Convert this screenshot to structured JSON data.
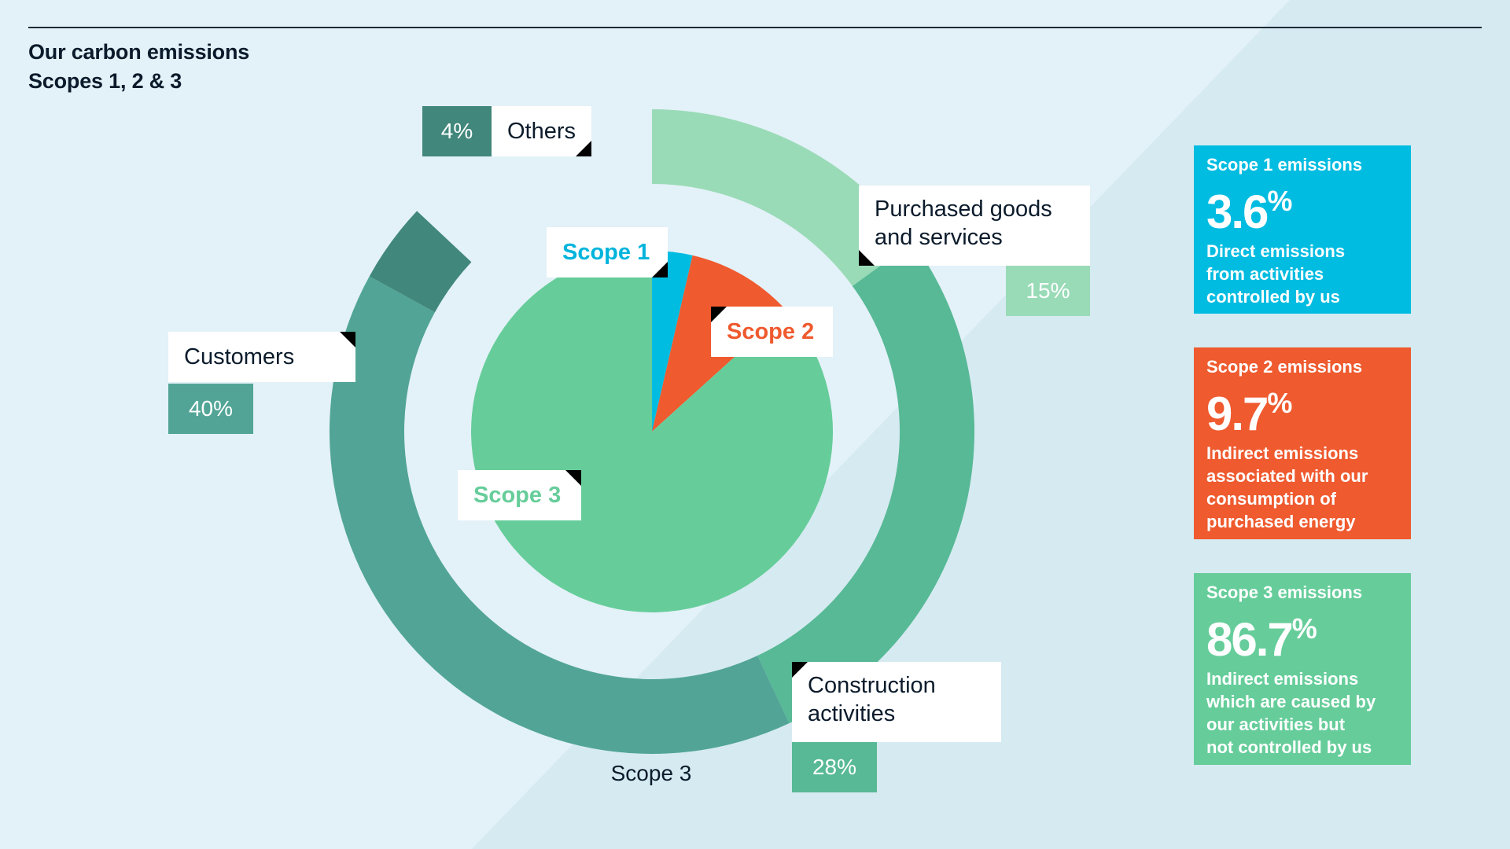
{
  "title_line1": "Our carbon emissions",
  "title_line2": "Scopes 1, 2 & 3",
  "chart_data": [
    {
      "type": "pie",
      "name": "Scopes",
      "slices": [
        {
          "label": "Scope 1",
          "value": 3.6,
          "color": "#00bce1"
        },
        {
          "label": "Scope 2",
          "value": 9.7,
          "color": "#ef5a2f"
        },
        {
          "label": "Scope 3",
          "value": 86.7,
          "color": "#66cd9a"
        }
      ]
    },
    {
      "type": "donut",
      "caption": "Scope 3",
      "slices": [
        {
          "label": "Purchased goods and services",
          "value": 15,
          "value_label": "15%",
          "color": "#9adbb7"
        },
        {
          "label": "Construction activities",
          "value": 28,
          "value_label": "28%",
          "color": "#58b996"
        },
        {
          "label": "Customers",
          "value": 40,
          "value_label": "40%",
          "color": "#52a596"
        },
        {
          "label": "Others",
          "value": 4,
          "value_label": "4%",
          "color": "#41877b"
        }
      ]
    }
  ],
  "tags": {
    "scope1": "Scope 1",
    "scope2": "Scope 2",
    "scope3": "Scope 3",
    "purchased_line1": "Purchased goods",
    "purchased_line2": "and services",
    "construction_line1": "Construction",
    "construction_line2": "activities",
    "customers": "Customers",
    "others": "Others"
  },
  "side_boxes": [
    {
      "heading": "Scope 1 emissions",
      "value": "3.6",
      "unit": "%",
      "line1": "Direct emissions",
      "line2": "from activities",
      "line3": "controlled by us",
      "line4": "",
      "color": "#00bce1"
    },
    {
      "heading": "Scope 2 emissions",
      "value": "9.7",
      "unit": "%",
      "line1": "Indirect emissions",
      "line2": "associated with our",
      "line3": "consumption of",
      "line4": "purchased energy",
      "color": "#ef5a2f"
    },
    {
      "heading": "Scope 3 emissions",
      "value": "86.7",
      "unit": "%",
      "line1": "Indirect emissions",
      "line2": "which are caused by",
      "line3": "our activities but",
      "line4": "not controlled by us",
      "color": "#66cd9a"
    }
  ]
}
